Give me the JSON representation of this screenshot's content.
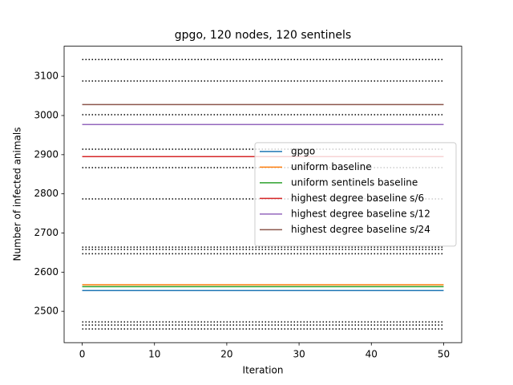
{
  "chart_data": {
    "type": "line",
    "title": "gpgo, 120 nodes, 120 sentinels",
    "x_label": "Iteration",
    "y_label": "Number of infected animals",
    "x": [
      0,
      50
    ],
    "xlim": [
      -2.5,
      52.5
    ],
    "xticks": [
      0,
      10,
      20,
      30,
      40,
      50
    ],
    "ylim": [
      2420,
      3177
    ],
    "yticks": [
      2500,
      2600,
      2700,
      2800,
      2900,
      3000,
      3100
    ],
    "legend": "center right",
    "series": [
      {
        "name": "gpgo",
        "color": "#1f77b4",
        "values": [
          2553,
          2553
        ]
      },
      {
        "name": "uniform baseline",
        "color": "#ff7f0e",
        "values": [
          2568,
          2568
        ]
      },
      {
        "name": "uniform sentinels baseline",
        "color": "#2ca02c",
        "values": [
          2563,
          2563
        ]
      },
      {
        "name": "highest degree baseline s/6",
        "color": "#d62728",
        "values": [
          2895,
          2895
        ]
      },
      {
        "name": "highest degree baseline s/12",
        "color": "#9467bd",
        "values": [
          2977,
          2977
        ]
      },
      {
        "name": "highest degree baseline s/24",
        "color": "#8c564b",
        "values": [
          3028,
          3028
        ]
      },
      {
        "color": "#000000",
        "style": "dotted",
        "values": [
          3143,
          3143
        ]
      },
      {
        "color": "#000000",
        "style": "dotted",
        "values": [
          3088,
          3088
        ]
      },
      {
        "color": "#000000",
        "style": "dotted",
        "values": [
          3002,
          3002
        ]
      },
      {
        "color": "#000000",
        "style": "dotted",
        "values": [
          2914,
          2914
        ]
      },
      {
        "color": "#000000",
        "style": "dotted",
        "values": [
          2867,
          2867
        ]
      },
      {
        "color": "#000000",
        "style": "dotted",
        "values": [
          2787,
          2787
        ]
      },
      {
        "color": "#000000",
        "style": "dotted",
        "values": [
          2664,
          2664
        ]
      },
      {
        "color": "#000000",
        "style": "dotted",
        "values": [
          2658,
          2658
        ]
      },
      {
        "color": "#000000",
        "style": "dotted",
        "values": [
          2647,
          2647
        ]
      },
      {
        "color": "#000000",
        "style": "dotted",
        "values": [
          2473,
          2473
        ]
      },
      {
        "color": "#000000",
        "style": "dotted",
        "values": [
          2465,
          2465
        ]
      },
      {
        "color": "#000000",
        "style": "dotted",
        "values": [
          2455,
          2455
        ]
      }
    ]
  }
}
